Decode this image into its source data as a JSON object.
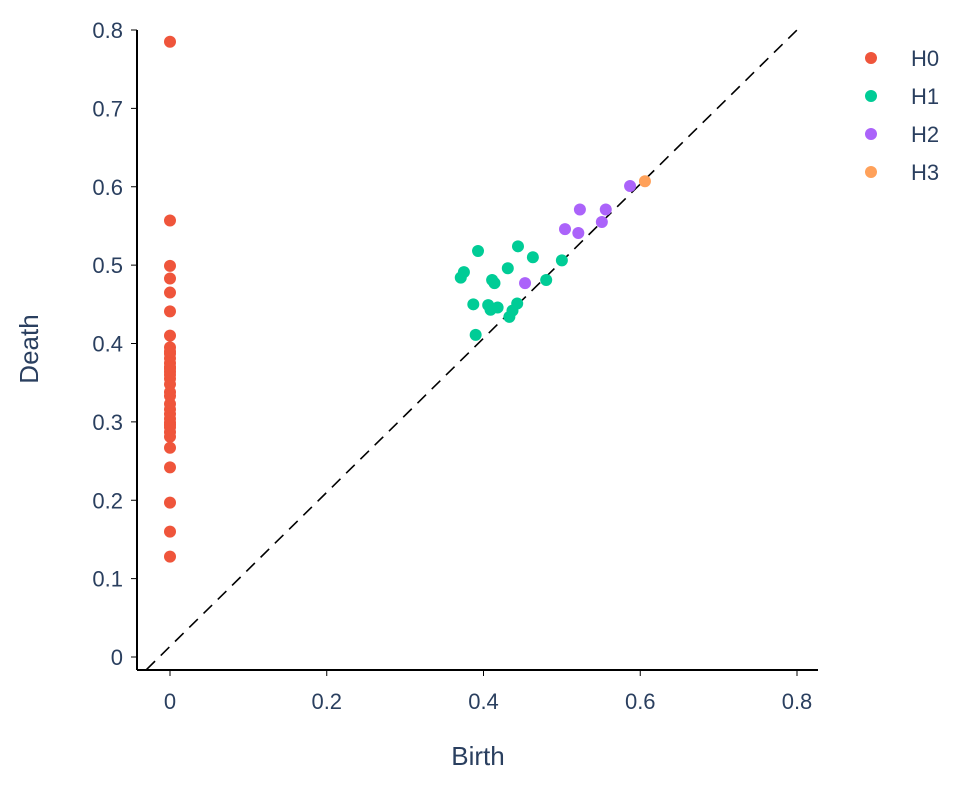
{
  "chart_data": {
    "type": "scatter",
    "title": "",
    "xlabel": "Birth",
    "ylabel": "Death",
    "xlim": [
      -0.042,
      0.825
    ],
    "ylim": [
      -0.016,
      0.8
    ],
    "xticks": [
      0,
      0.2,
      0.4,
      0.6,
      0.8
    ],
    "xtick_labels": [
      "0",
      "0.2",
      "0.4",
      "0.6",
      "0.8"
    ],
    "yticks": [
      0,
      0.1,
      0.2,
      0.3,
      0.4,
      0.5,
      0.6,
      0.7,
      0.8
    ],
    "ytick_labels": [
      "0",
      "0.1",
      "0.2",
      "0.3",
      "0.4",
      "0.5",
      "0.6",
      "0.7",
      "0.8"
    ],
    "grid": false,
    "legend_position": "top-right",
    "diagonal": {
      "from": [
        -0.03,
        -0.016
      ],
      "to": [
        0.8,
        0.8
      ],
      "style": "dashed"
    },
    "series": [
      {
        "name": "H0",
        "color": "#ef553b",
        "x": [
          0,
          0,
          0,
          0,
          0,
          0,
          0,
          0,
          0,
          0,
          0,
          0,
          0,
          0,
          0,
          0,
          0,
          0,
          0,
          0,
          0,
          0,
          0,
          0,
          0,
          0,
          0,
          0,
          0,
          0,
          0,
          0,
          0,
          0
        ],
        "y": [
          0.785,
          0.557,
          0.499,
          0.483,
          0.465,
          0.441,
          0.41,
          0.395,
          0.387,
          0.381,
          0.375,
          0.37,
          0.364,
          0.355,
          0.348,
          0.338,
          0.323,
          0.316,
          0.31,
          0.304,
          0.299,
          0.293,
          0.287,
          0.281,
          0.267,
          0.242,
          0.197,
          0.16,
          0.128,
          0.39,
          0.368,
          0.333,
          0.296,
          0.36
        ]
      },
      {
        "name": "H1",
        "color": "#00cc96",
        "x": [
          0.371,
          0.375,
          0.393,
          0.387,
          0.39,
          0.406,
          0.409,
          0.411,
          0.414,
          0.418,
          0.431,
          0.433,
          0.437,
          0.443,
          0.444,
          0.463,
          0.48,
          0.5
        ],
        "y": [
          0.484,
          0.491,
          0.518,
          0.45,
          0.411,
          0.449,
          0.443,
          0.481,
          0.477,
          0.446,
          0.496,
          0.434,
          0.442,
          0.451,
          0.524,
          0.51,
          0.481,
          0.506
        ]
      },
      {
        "name": "H2",
        "color": "#ab63fa",
        "x": [
          0.453,
          0.504,
          0.521,
          0.523,
          0.551,
          0.556,
          0.587
        ],
        "y": [
          0.477,
          0.546,
          0.541,
          0.571,
          0.555,
          0.571,
          0.601
        ]
      },
      {
        "name": "H3",
        "color": "#ffa15a",
        "x": [
          0.606
        ],
        "y": [
          0.607
        ]
      }
    ]
  }
}
